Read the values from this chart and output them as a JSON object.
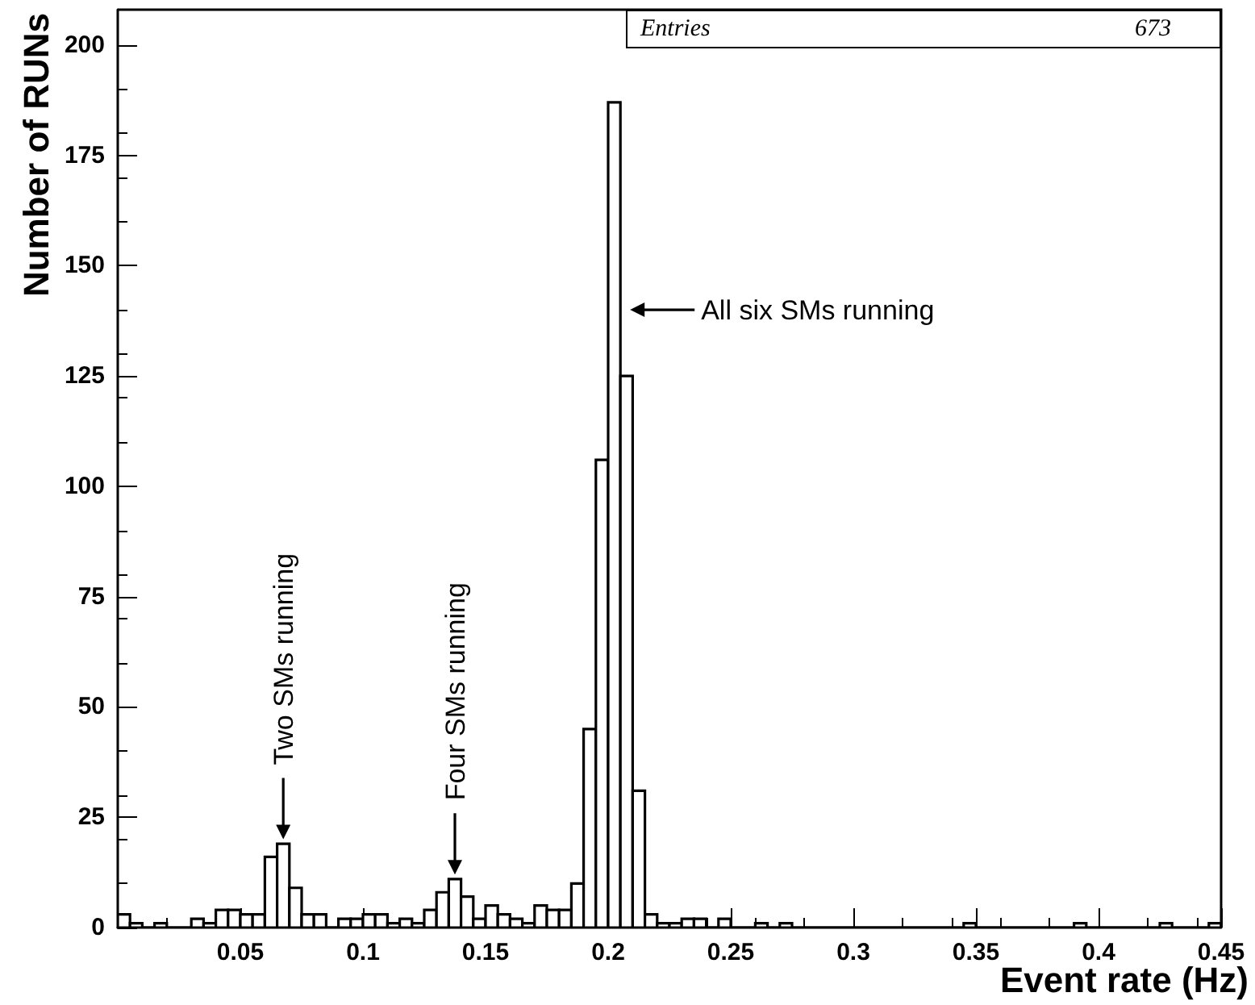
{
  "chart_data": {
    "type": "histogram",
    "xlabel": "Event rate (Hz)",
    "ylabel": "Number of RUNs",
    "bins": [
      0,
      0.005,
      0.01,
      0.015,
      0.02,
      0.025,
      0.03,
      0.035,
      0.04,
      0.045,
      0.05,
      0.055,
      0.06,
      0.065,
      0.07,
      0.075,
      0.08,
      0.085,
      0.09,
      0.095,
      0.1,
      0.105,
      0.11,
      0.115,
      0.12,
      0.125,
      0.13,
      0.135,
      0.14,
      0.145,
      0.15,
      0.155,
      0.16,
      0.165,
      0.17,
      0.175,
      0.18,
      0.185,
      0.19,
      0.195,
      0.2,
      0.205,
      0.21,
      0.215,
      0.22,
      0.225,
      0.23,
      0.235,
      0.24,
      0.245,
      0.25,
      0.255,
      0.26,
      0.265,
      0.27,
      0.275,
      0.28,
      0.285,
      0.29,
      0.295,
      0.3,
      0.305,
      0.31,
      0.315,
      0.32,
      0.325,
      0.33,
      0.335,
      0.34,
      0.345,
      0.35,
      0.355,
      0.36,
      0.365,
      0.37,
      0.375,
      0.38,
      0.385,
      0.39,
      0.395,
      0.4,
      0.405,
      0.41,
      0.415,
      0.42,
      0.425,
      0.43,
      0.435,
      0.44,
      0.445,
      0.45
    ],
    "values": [
      3,
      1,
      0,
      1,
      0,
      0,
      2,
      1,
      4,
      4,
      3,
      3,
      16,
      19,
      9,
      3,
      3,
      0,
      2,
      2,
      3,
      3,
      1,
      2,
      1,
      4,
      8,
      11,
      7,
      2,
      5,
      3,
      2,
      1,
      5,
      4,
      4,
      10,
      45,
      106,
      187,
      125,
      31,
      3,
      1,
      1,
      2,
      2,
      0,
      2,
      0,
      0,
      1,
      0,
      1,
      0,
      0,
      0,
      0,
      0,
      0,
      0,
      0,
      0,
      0,
      0,
      0,
      0,
      0,
      1,
      0,
      0,
      0,
      0,
      0,
      0,
      0,
      0,
      1,
      0,
      0,
      0,
      0,
      0,
      0,
      1,
      0,
      0,
      0,
      1
    ],
    "color": "#000000",
    "xlim": [
      0,
      0.45
    ],
    "xticks": [
      0.05,
      0.1,
      0.15,
      0.2,
      0.25,
      0.3,
      0.35,
      0.4,
      0.45
    ],
    "ylim": [
      0,
      208
    ],
    "yticks": [
      0,
      25,
      50,
      75,
      100,
      125,
      150,
      175,
      200
    ],
    "annotations": [
      "Entries",
      "673",
      {
        "text": "Two SMs running",
        "x": 0.0675,
        "y": 20
      },
      {
        "text": "Four SMs running",
        "x": 0.1375,
        "y": 12
      },
      {
        "text": "All six SMs running",
        "x": 0.205,
        "y": 140
      }
    ]
  }
}
